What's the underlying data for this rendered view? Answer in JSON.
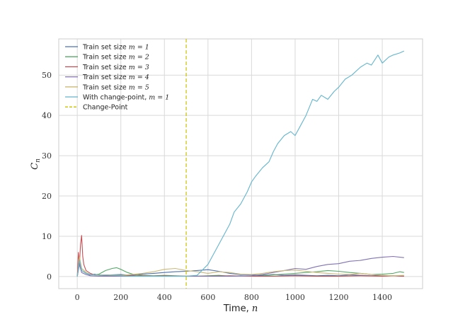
{
  "chart_data": {
    "type": "line",
    "xlabel": "Time, ",
    "xlabel_var": "n",
    "ylabel_var": "C",
    "ylabel_sub": "n",
    "xlim": [
      -85,
      1585
    ],
    "ylim": [
      -3,
      59
    ],
    "xticks": [
      0,
      200,
      400,
      600,
      800,
      1000,
      1200,
      1400
    ],
    "yticks": [
      0,
      10,
      20,
      30,
      40,
      50
    ],
    "grid": true,
    "legend_position": "top-left",
    "colors": {
      "blue": "#4c72b0",
      "green": "#55a868",
      "red": "#c44e52",
      "purple": "#8172b2",
      "gold": "#ccb974",
      "cyan": "#64b5cd",
      "changepoint": "#c9c200"
    },
    "series": [
      {
        "name": "Train set size ",
        "name_var": "m = 1",
        "color": "#4c72b0",
        "x": [
          0,
          10,
          20,
          40,
          60,
          80,
          100,
          150,
          200,
          250,
          300,
          350,
          400,
          450,
          500,
          550,
          600,
          650,
          700,
          750,
          800,
          850,
          900,
          950,
          1000,
          1050,
          1100,
          1150,
          1200,
          1250,
          1300,
          1350,
          1400,
          1450,
          1500
        ],
        "values": [
          0,
          3.5,
          1.5,
          0.8,
          0.4,
          0.6,
          0.3,
          0.4,
          0.5,
          0.3,
          0.6,
          0.8,
          1.0,
          1.2,
          1.3,
          1.5,
          1.7,
          1.3,
          0.8,
          0.5,
          0.4,
          0.3,
          0.5,
          0.3,
          0.4,
          0.3,
          0.2,
          0.3,
          0.2,
          0.4,
          0.3,
          0.2,
          0.3,
          0.2,
          0.1
        ]
      },
      {
        "name": "Train set size ",
        "name_var": "m = 2",
        "color": "#55a868",
        "x": [
          0,
          10,
          20,
          40,
          60,
          80,
          100,
          130,
          160,
          180,
          200,
          230,
          260,
          300,
          350,
          400,
          450,
          500,
          550,
          600,
          650,
          700,
          750,
          800,
          850,
          900,
          950,
          1000,
          1050,
          1100,
          1150,
          1200,
          1250,
          1300,
          1350,
          1400,
          1450,
          1480,
          1500
        ],
        "values": [
          0,
          4.5,
          2.0,
          1.0,
          0.5,
          0.4,
          0.6,
          1.5,
          2.0,
          2.2,
          1.8,
          1.0,
          0.5,
          0.3,
          0.2,
          0.3,
          0.2,
          0.1,
          0.1,
          0.2,
          0.3,
          0.1,
          0.2,
          0.1,
          0.2,
          0.4,
          0.6,
          0.8,
          1.0,
          1.2,
          1.5,
          1.3,
          1.0,
          0.8,
          0.5,
          0.6,
          0.8,
          1.2,
          1.0
        ]
      },
      {
        "name": "Train set size ",
        "name_var": "m = 3",
        "color": "#c44e52",
        "x": [
          0,
          5,
          10,
          15,
          20,
          25,
          30,
          40,
          60,
          80,
          100,
          150,
          200,
          250,
          300,
          350,
          400,
          450,
          500,
          600,
          700,
          800,
          900,
          1000,
          1100,
          1200,
          1300,
          1400,
          1450,
          1500
        ],
        "values": [
          0,
          6.0,
          3.0,
          8.0,
          10.2,
          5.0,
          3.0,
          1.5,
          0.8,
          0.4,
          0.3,
          0.2,
          0.3,
          0.2,
          0.2,
          0.1,
          0.2,
          0.1,
          0.1,
          0.1,
          0.2,
          0.1,
          0.1,
          0.2,
          0.1,
          0.1,
          0.2,
          0.1,
          0.2,
          0.1
        ]
      },
      {
        "name": "Train set size ",
        "name_var": "m = 4",
        "color": "#8172b2",
        "x": [
          0,
          10,
          20,
          40,
          60,
          100,
          150,
          200,
          300,
          400,
          500,
          600,
          700,
          800,
          850,
          900,
          950,
          1000,
          1050,
          1100,
          1150,
          1200,
          1250,
          1300,
          1350,
          1400,
          1450,
          1500
        ],
        "values": [
          0,
          3.0,
          1.0,
          0.5,
          0.2,
          0.1,
          0.1,
          0.1,
          0.1,
          0.1,
          0.1,
          0.1,
          0.1,
          0.2,
          0.5,
          1.0,
          1.5,
          2.0,
          1.8,
          2.5,
          3.0,
          3.2,
          3.8,
          4.0,
          4.5,
          4.8,
          5.0,
          4.7
        ]
      },
      {
        "name": "Train set size ",
        "name_var": "m = 5",
        "color": "#ccb974",
        "x": [
          0,
          10,
          20,
          40,
          60,
          100,
          150,
          200,
          250,
          300,
          350,
          400,
          450,
          500,
          550,
          600,
          650,
          700,
          750,
          800,
          850,
          900,
          950,
          1000,
          1050,
          1100,
          1150,
          1200,
          1250,
          1300,
          1350,
          1400,
          1450,
          1500
        ],
        "values": [
          0,
          5.0,
          2.0,
          1.0,
          0.5,
          0.3,
          0.4,
          0.3,
          0.5,
          0.8,
          1.2,
          1.8,
          2.0,
          1.5,
          1.2,
          0.8,
          1.2,
          1.0,
          0.6,
          0.5,
          0.8,
          1.2,
          1.5,
          1.6,
          1.3,
          1.0,
          0.8,
          0.6,
          0.5,
          0.8,
          0.5,
          0.3,
          0.2,
          0.3
        ]
      },
      {
        "name": "With change-point, ",
        "name_var": "m = 1",
        "color": "#64b5cd",
        "x": [
          0,
          10,
          20,
          40,
          60,
          100,
          150,
          200,
          250,
          300,
          350,
          400,
          450,
          500,
          550,
          600,
          650,
          700,
          720,
          750,
          780,
          800,
          820,
          850,
          880,
          900,
          920,
          950,
          980,
          1000,
          1020,
          1050,
          1080,
          1100,
          1120,
          1150,
          1180,
          1200,
          1230,
          1260,
          1300,
          1330,
          1350,
          1380,
          1400,
          1430,
          1450,
          1480,
          1500
        ],
        "values": [
          0,
          4.0,
          1.5,
          0.8,
          0.5,
          0.4,
          0.3,
          0.2,
          0.1,
          0.1,
          0.1,
          0.1,
          0.1,
          0.1,
          0.3,
          3.0,
          8.0,
          13.0,
          16.0,
          18.0,
          21.0,
          23.5,
          25.0,
          27.0,
          28.5,
          31.0,
          33.0,
          35.0,
          36.0,
          35.0,
          37.0,
          40.0,
          44.0,
          43.5,
          45.0,
          44.0,
          46.0,
          47.0,
          49.0,
          50.0,
          52.0,
          53.0,
          52.5,
          55.0,
          53.0,
          54.5,
          55.0,
          55.5,
          56.0
        ]
      }
    ],
    "changepoint": {
      "name": "Change-Point",
      "x": 500,
      "color": "#c9c200",
      "style": "dashed"
    }
  }
}
